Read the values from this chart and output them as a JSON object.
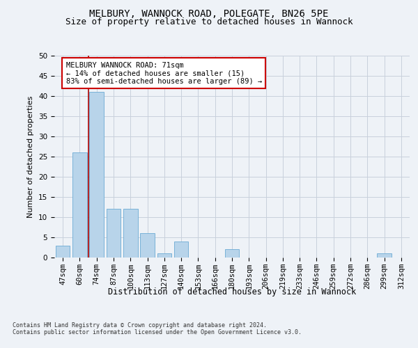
{
  "title1": "MELBURY, WANNOCK ROAD, POLEGATE, BN26 5PE",
  "title2": "Size of property relative to detached houses in Wannock",
  "xlabel": "Distribution of detached houses by size in Wannock",
  "ylabel": "Number of detached properties",
  "categories": [
    "47sqm",
    "60sqm",
    "74sqm",
    "87sqm",
    "100sqm",
    "113sqm",
    "127sqm",
    "140sqm",
    "153sqm",
    "166sqm",
    "180sqm",
    "193sqm",
    "206sqm",
    "219sqm",
    "233sqm",
    "246sqm",
    "259sqm",
    "272sqm",
    "286sqm",
    "299sqm",
    "312sqm"
  ],
  "values": [
    3,
    26,
    41,
    12,
    12,
    6,
    1,
    4,
    0,
    0,
    2,
    0,
    0,
    0,
    0,
    0,
    0,
    0,
    0,
    1,
    0
  ],
  "bar_color": "#b8d4ea",
  "bar_edge_color": "#6aaad4",
  "vline_color": "#aa0000",
  "annotation_text": "MELBURY WANNOCK ROAD: 71sqm\n← 14% of detached houses are smaller (15)\n83% of semi-detached houses are larger (89) →",
  "annotation_box_color": "#ffffff",
  "annotation_box_edge": "#cc0000",
  "ylim": [
    0,
    50
  ],
  "yticks": [
    0,
    5,
    10,
    15,
    20,
    25,
    30,
    35,
    40,
    45,
    50
  ],
  "footer1": "Contains HM Land Registry data © Crown copyright and database right 2024.",
  "footer2": "Contains public sector information licensed under the Open Government Licence v3.0.",
  "bg_color": "#eef2f7",
  "plot_bg_color": "#eef2f7",
  "grid_color": "#c8d0dc",
  "title1_fontsize": 10,
  "title2_fontsize": 9,
  "xlabel_fontsize": 8.5,
  "ylabel_fontsize": 8,
  "tick_fontsize": 7.5,
  "footer_fontsize": 6,
  "annotation_fontsize": 7.5
}
